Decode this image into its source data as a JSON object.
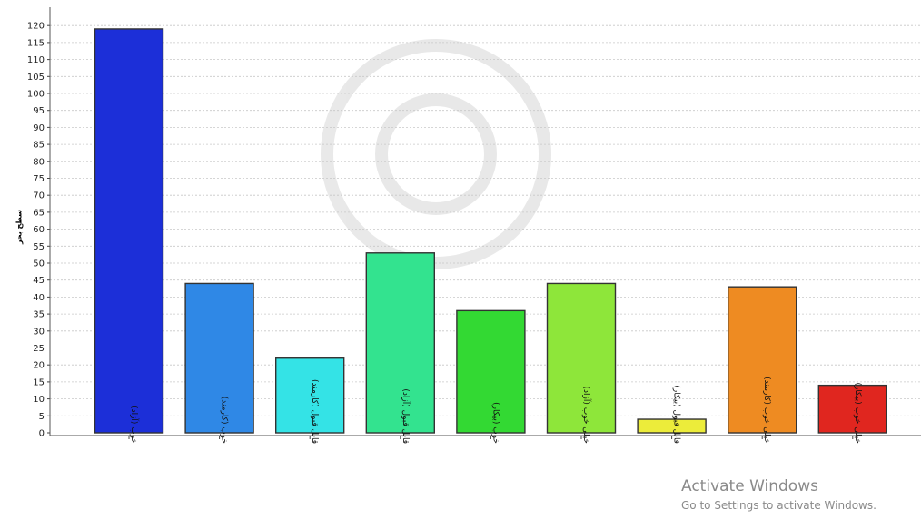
{
  "chart_data": {
    "type": "bar",
    "title": "",
    "xlabel": "",
    "ylabel": "سطح بحر",
    "ylim": [
      0,
      120
    ],
    "ytick_step": 5,
    "grid": true,
    "categories": [
      "خوب (آزاد)",
      "خوب (کارمند)",
      "قابل قبول (کارمند)",
      "قابل قبول (آزاد)",
      "خوب (بیکار)",
      "خیلی خوب (آزاد)",
      "قابل قبول (بیکار)",
      "خیلی خوب (کارمند)",
      "خیلی خوب (بیکار)"
    ],
    "values": [
      119,
      44,
      22,
      53,
      36,
      44,
      4,
      43,
      14
    ],
    "colors": [
      "#1c2fd8",
      "#2f88e6",
      "#34e3e6",
      "#33e38f",
      "#33d933",
      "#8ee63a",
      "#ecec3a",
      "#ee8b22",
      "#e0261f"
    ]
  },
  "watermark": {
    "line1": "Activate Windows",
    "line2": "Go to Settings to activate Windows."
  }
}
